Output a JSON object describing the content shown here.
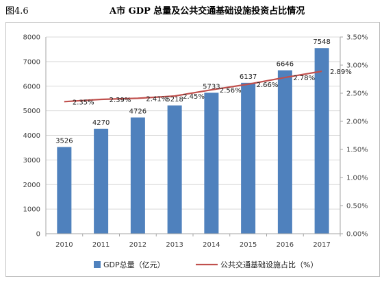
{
  "figure": {
    "number": "图4.6",
    "title": "A市 GDP 总量及公共交通基础设施投资占比情况"
  },
  "colors": {
    "bar": "#4f81bd",
    "line": "#c0504d",
    "grid": "#d9d9d9",
    "axis": "#a6a6a6"
  },
  "chart_data": {
    "type": "bar",
    "categories": [
      "2010",
      "2011",
      "2012",
      "2013",
      "2014",
      "2015",
      "2016",
      "2017"
    ],
    "series": [
      {
        "name": "GDP总量（亿元）",
        "type": "bar",
        "axis": "left",
        "values": [
          3526,
          4270,
          4726,
          5218,
          5733,
          6137,
          6646,
          7548
        ],
        "labels": [
          "3526",
          "4270",
          "4726",
          "5218",
          "5733",
          "6137",
          "6646",
          "7548"
        ]
      },
      {
        "name": "公共交通基础设施占比（%）",
        "type": "line",
        "axis": "right",
        "values": [
          2.35,
          2.39,
          2.41,
          2.45,
          2.56,
          2.66,
          2.78,
          2.89
        ],
        "labels": [
          "2.35%",
          "2.39%",
          "2.41%",
          "2.45%",
          "2.56%",
          "2.66%",
          "2.78%",
          "2.89%"
        ]
      }
    ],
    "y_left": {
      "ylim": [
        0,
        8000
      ],
      "ticks": [
        "0",
        "1000",
        "2000",
        "3000",
        "4000",
        "5000",
        "6000",
        "7000",
        "8000"
      ]
    },
    "y_right": {
      "ylim": [
        0,
        3.5
      ],
      "ticks": [
        "0.00%",
        "0.50%",
        "1.00%",
        "1.50%",
        "2.00%",
        "2.50%",
        "3.00%",
        "3.50%"
      ]
    },
    "grid": true,
    "legend_position": "bottom"
  }
}
